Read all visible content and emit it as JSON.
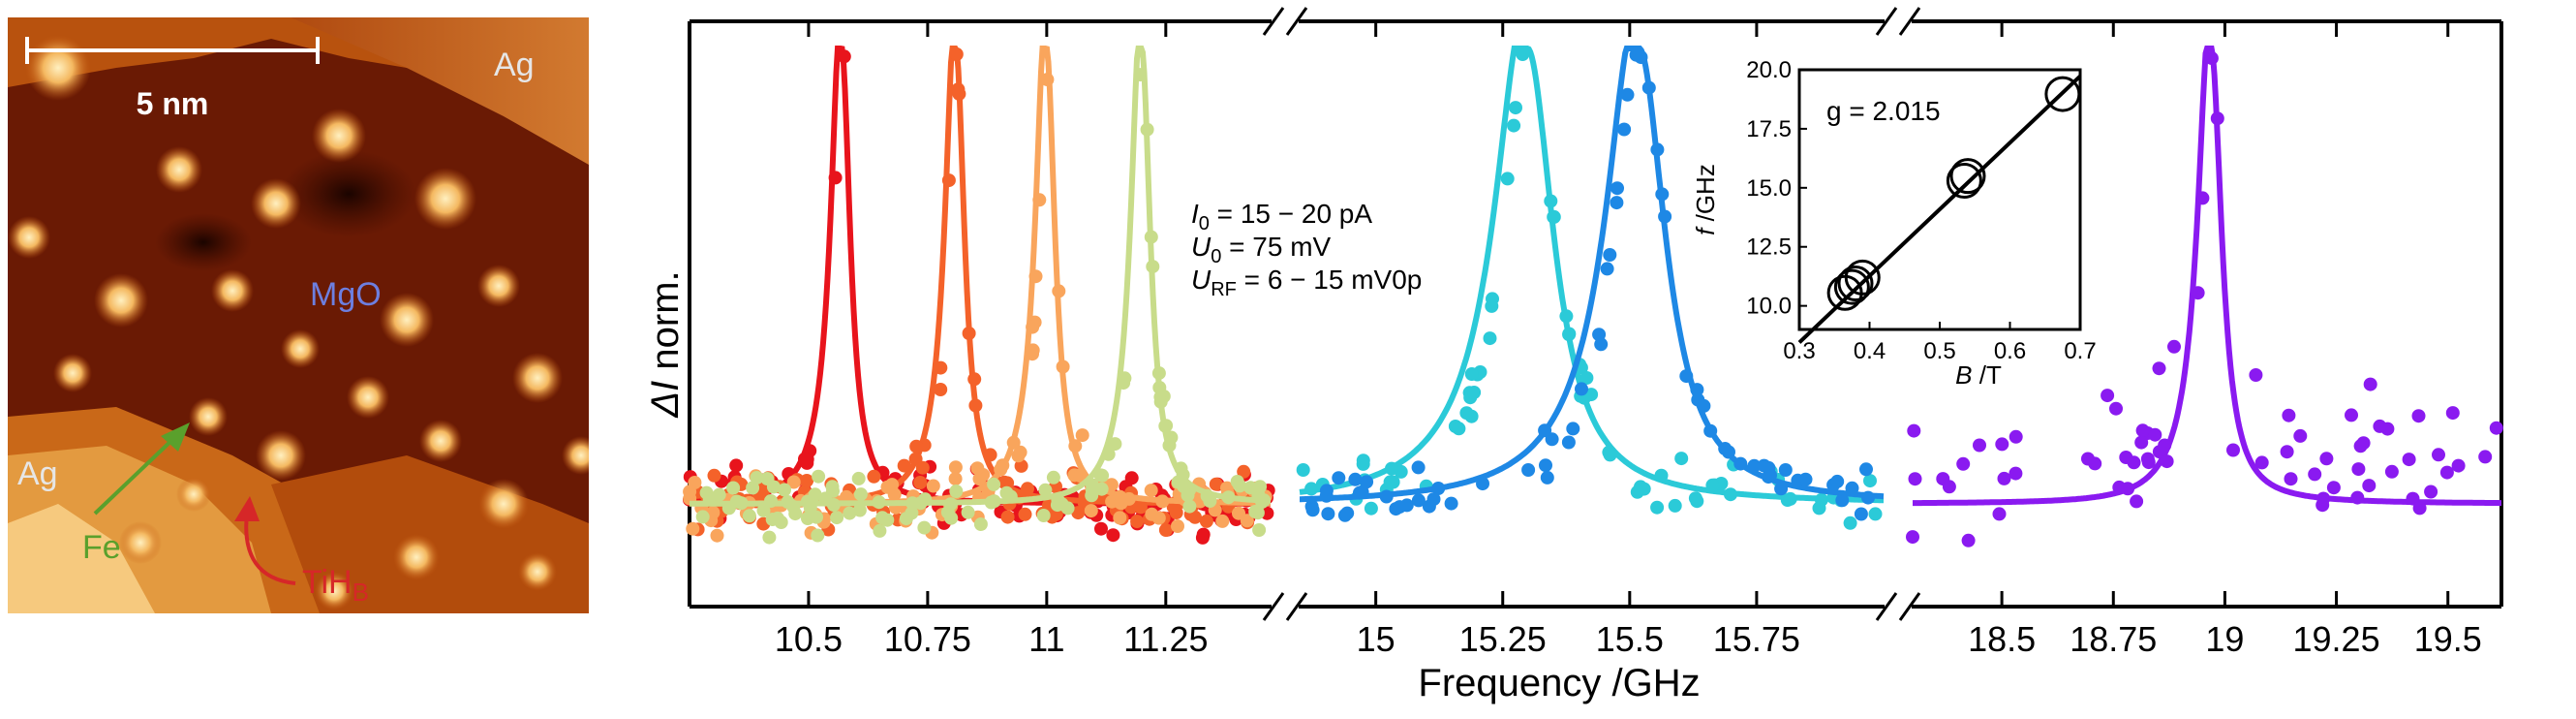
{
  "stm": {
    "scalebar_label": "5 nm",
    "labels": {
      "ag_top": "Ag",
      "ag_left": "Ag",
      "mgo": "MgO",
      "fe": "Fe",
      "tih_main": "TiH",
      "tih_sub": "B"
    },
    "colors": {
      "fe_arrow": "#5aa02c",
      "tih_arrow": "#d62728",
      "mgo_text": "#6d7fe0"
    }
  },
  "chart_data": {
    "type": "scatter",
    "ylabel_italic": "ΔI",
    "ylabel_rest": " norm.",
    "xlabel": "Frequency /GHz",
    "annotation": [
      {
        "sym": "I",
        "sub": "0",
        "rest": " = 15 − 20 pA"
      },
      {
        "sym": "U",
        "sub": "0",
        "rest": " = 75 mV"
      },
      {
        "sym": "U",
        "sub": "RF",
        "rest": " = 6 − 15 mV0p"
      }
    ],
    "panels": [
      {
        "xlim": [
          10.25,
          11.47
        ],
        "ticks": [
          10.5,
          10.75,
          11,
          11.25
        ],
        "tick_labels": [
          "10.5",
          "10.75",
          "11",
          "11.25"
        ],
        "series": [
          {
            "color": "#e8141c",
            "f0": 10.57
          },
          {
            "color": "#f4622a",
            "f0": 10.81
          },
          {
            "color": "#f9a55c",
            "f0": 11.0
          },
          {
            "color": "#c8dc8a",
            "f0": 11.2
          }
        ]
      },
      {
        "xlim": [
          14.85,
          16.0
        ],
        "ticks": [
          15,
          15.25,
          15.5,
          15.75
        ],
        "tick_labels": [
          "15",
          "15.25",
          "15.5",
          "15.75"
        ],
        "series": [
          {
            "color": "#2bcad8",
            "f0": 15.3
          },
          {
            "color": "#1e88e5",
            "f0": 15.52
          }
        ]
      },
      {
        "xlim": [
          18.3,
          19.62
        ],
        "ticks": [
          18.5,
          18.75,
          19,
          19.25,
          19.5
        ],
        "tick_labels": [
          "18.5",
          "18.75",
          "19",
          "19.25",
          "19.5"
        ],
        "series": [
          {
            "color": "#8a1af0",
            "f0": 18.97
          }
        ]
      }
    ],
    "inset": {
      "type": "scatter",
      "xlabel_sym": "B",
      "xlabel_unit": " /T",
      "ylabel_sym": "f",
      "ylabel_unit": " /GHz",
      "xlim": [
        0.3,
        0.7
      ],
      "ylim": [
        9.0,
        20.0
      ],
      "xticks": [
        "0.3",
        "0.4",
        "0.5",
        "0.6",
        "0.7"
      ],
      "yticks": [
        "10.0",
        "12.5",
        "15.0",
        "17.5",
        "20.0"
      ],
      "annotation": "g = 2.015",
      "fit": {
        "x": [
          0.3,
          0.7
        ],
        "y": [
          8.45,
          19.73
        ]
      },
      "points": [
        {
          "x": 0.365,
          "y": 10.55
        },
        {
          "x": 0.375,
          "y": 10.8
        },
        {
          "x": 0.38,
          "y": 10.95
        },
        {
          "x": 0.39,
          "y": 11.2
        },
        {
          "x": 0.535,
          "y": 15.3
        },
        {
          "x": 0.54,
          "y": 15.5
        },
        {
          "x": 0.675,
          "y": 18.97
        }
      ]
    }
  }
}
